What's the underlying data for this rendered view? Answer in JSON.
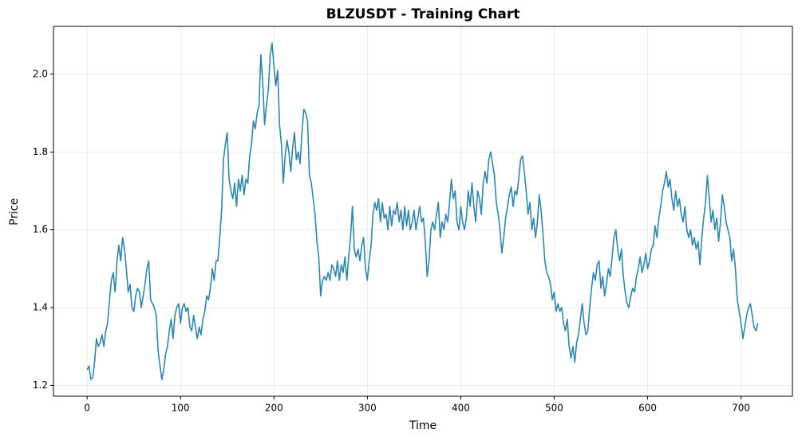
{
  "chart_data": {
    "type": "line",
    "title": "BLZUSDT - Training Chart",
    "x_label": "Time",
    "y_label": "Price",
    "xlim": [
      -36,
      755
    ],
    "ylim": [
      1.172,
      2.123
    ],
    "xticks": [
      0,
      100,
      200,
      300,
      400,
      500,
      600,
      700
    ],
    "yticks": [
      1.2,
      1.4,
      1.6,
      1.8,
      {
        "value": 2,
        "label": "2.0"
      }
    ],
    "grid": true,
    "series": [
      {
        "color": "#2e86ab",
        "x": [
          0,
          2,
          4,
          6,
          8,
          10,
          12,
          14,
          16,
          18,
          20,
          22,
          24,
          26,
          28,
          30,
          32,
          34,
          36,
          38,
          40,
          42,
          44,
          46,
          48,
          50,
          52,
          54,
          56,
          58,
          60,
          62,
          64,
          66,
          68,
          70,
          72,
          74,
          76,
          78,
          80,
          82,
          84,
          86,
          88,
          90,
          92,
          94,
          96,
          98,
          100,
          102,
          104,
          106,
          108,
          110,
          112,
          114,
          116,
          118,
          120,
          122,
          124,
          126,
          128,
          130,
          132,
          134,
          136,
          138,
          140,
          142,
          144,
          146,
          148,
          150,
          152,
          154,
          156,
          158,
          160,
          162,
          164,
          166,
          168,
          170,
          172,
          174,
          176,
          178,
          180,
          182,
          184,
          186,
          188,
          190,
          192,
          194,
          196,
          198,
          200,
          202,
          204,
          206,
          208,
          210,
          212,
          214,
          216,
          218,
          220,
          222,
          224,
          226,
          228,
          230,
          232,
          234,
          236,
          238,
          240,
          242,
          244,
          246,
          248,
          250,
          252,
          254,
          256,
          258,
          260,
          262,
          264,
          266,
          268,
          270,
          272,
          274,
          276,
          278,
          280,
          282,
          284,
          286,
          288,
          290,
          292,
          294,
          296,
          298,
          300,
          302,
          304,
          306,
          308,
          310,
          312,
          314,
          316,
          318,
          320,
          322,
          324,
          326,
          328,
          330,
          332,
          334,
          336,
          338,
          340,
          342,
          344,
          346,
          348,
          350,
          352,
          354,
          356,
          358,
          360,
          362,
          364,
          366,
          368,
          370,
          372,
          374,
          376,
          378,
          380,
          382,
          384,
          386,
          388,
          390,
          392,
          394,
          396,
          398,
          400,
          402,
          404,
          406,
          408,
          410,
          412,
          414,
          416,
          418,
          420,
          422,
          424,
          426,
          428,
          430,
          432,
          434,
          436,
          438,
          440,
          442,
          444,
          446,
          448,
          450,
          452,
          454,
          456,
          458,
          460,
          462,
          464,
          466,
          468,
          470,
          472,
          474,
          476,
          478,
          480,
          482,
          484,
          486,
          488,
          490,
          492,
          494,
          496,
          498,
          500,
          502,
          504,
          506,
          508,
          510,
          512,
          514,
          516,
          518,
          520,
          522,
          524,
          526,
          528,
          530,
          532,
          534,
          536,
          538,
          540,
          542,
          544,
          546,
          548,
          550,
          552,
          554,
          556,
          558,
          560,
          562,
          564,
          566,
          568,
          570,
          572,
          574,
          576,
          578,
          580,
          582,
          584,
          586,
          588,
          590,
          592,
          594,
          596,
          598,
          600,
          602,
          604,
          606,
          608,
          610,
          612,
          614,
          616,
          618,
          620,
          622,
          624,
          626,
          628,
          630,
          632,
          634,
          636,
          638,
          640,
          642,
          644,
          646,
          648,
          650,
          652,
          654,
          656,
          658,
          660,
          662,
          664,
          666,
          668,
          670,
          672,
          674,
          676,
          678,
          680,
          682,
          684,
          686,
          688,
          690,
          692,
          694,
          696,
          698,
          700,
          702,
          704,
          706,
          708,
          710,
          712,
          714,
          716,
          718
        ],
        "values": [
          1.24,
          1.25,
          1.215,
          1.22,
          1.26,
          1.32,
          1.3,
          1.31,
          1.33,
          1.3,
          1.34,
          1.36,
          1.42,
          1.47,
          1.49,
          1.44,
          1.52,
          1.56,
          1.52,
          1.58,
          1.55,
          1.5,
          1.44,
          1.46,
          1.4,
          1.39,
          1.43,
          1.45,
          1.44,
          1.4,
          1.43,
          1.46,
          1.5,
          1.52,
          1.42,
          1.41,
          1.4,
          1.38,
          1.29,
          1.25,
          1.215,
          1.24,
          1.28,
          1.3,
          1.34,
          1.37,
          1.32,
          1.38,
          1.4,
          1.41,
          1.36,
          1.4,
          1.41,
          1.39,
          1.4,
          1.35,
          1.34,
          1.38,
          1.35,
          1.32,
          1.35,
          1.33,
          1.37,
          1.39,
          1.43,
          1.42,
          1.45,
          1.5,
          1.47,
          1.52,
          1.52,
          1.58,
          1.65,
          1.78,
          1.82,
          1.85,
          1.73,
          1.7,
          1.68,
          1.72,
          1.66,
          1.73,
          1.7,
          1.74,
          1.69,
          1.73,
          1.72,
          1.79,
          1.82,
          1.88,
          1.86,
          1.9,
          1.92,
          2.05,
          1.98,
          1.87,
          1.92,
          1.96,
          2.05,
          2.08,
          2.02,
          1.97,
          2.01,
          1.87,
          1.82,
          1.72,
          1.79,
          1.83,
          1.8,
          1.75,
          1.81,
          1.85,
          1.78,
          1.8,
          1.77,
          1.85,
          1.91,
          1.9,
          1.88,
          1.74,
          1.72,
          1.68,
          1.64,
          1.57,
          1.53,
          1.43,
          1.47,
          1.48,
          1.47,
          1.49,
          1.47,
          1.51,
          1.5,
          1.48,
          1.52,
          1.47,
          1.51,
          1.49,
          1.53,
          1.47,
          1.53,
          1.58,
          1.66,
          1.55,
          1.53,
          1.55,
          1.52,
          1.56,
          1.58,
          1.5,
          1.47,
          1.52,
          1.56,
          1.64,
          1.67,
          1.65,
          1.68,
          1.62,
          1.67,
          1.63,
          1.64,
          1.6,
          1.66,
          1.61,
          1.65,
          1.64,
          1.67,
          1.62,
          1.65,
          1.6,
          1.66,
          1.61,
          1.65,
          1.6,
          1.62,
          1.65,
          1.6,
          1.63,
          1.66,
          1.62,
          1.63,
          1.57,
          1.48,
          1.52,
          1.6,
          1.62,
          1.6,
          1.64,
          1.67,
          1.58,
          1.62,
          1.6,
          1.64,
          1.62,
          1.67,
          1.73,
          1.68,
          1.7,
          1.62,
          1.6,
          1.66,
          1.62,
          1.6,
          1.63,
          1.7,
          1.66,
          1.72,
          1.66,
          1.62,
          1.7,
          1.68,
          1.64,
          1.72,
          1.75,
          1.72,
          1.78,
          1.8,
          1.77,
          1.74,
          1.67,
          1.64,
          1.6,
          1.54,
          1.58,
          1.63,
          1.66,
          1.69,
          1.71,
          1.66,
          1.7,
          1.69,
          1.73,
          1.78,
          1.79,
          1.75,
          1.7,
          1.64,
          1.67,
          1.6,
          1.63,
          1.58,
          1.62,
          1.69,
          1.65,
          1.59,
          1.52,
          1.49,
          1.48,
          1.46,
          1.42,
          1.44,
          1.39,
          1.41,
          1.39,
          1.4,
          1.36,
          1.34,
          1.37,
          1.3,
          1.27,
          1.3,
          1.26,
          1.31,
          1.33,
          1.37,
          1.41,
          1.36,
          1.33,
          1.34,
          1.4,
          1.45,
          1.49,
          1.47,
          1.51,
          1.52,
          1.45,
          1.48,
          1.43,
          1.46,
          1.5,
          1.48,
          1.53,
          1.58,
          1.6,
          1.55,
          1.52,
          1.55,
          1.48,
          1.44,
          1.41,
          1.4,
          1.43,
          1.45,
          1.44,
          1.48,
          1.5,
          1.53,
          1.49,
          1.51,
          1.54,
          1.5,
          1.52,
          1.55,
          1.56,
          1.61,
          1.58,
          1.63,
          1.66,
          1.7,
          1.72,
          1.75,
          1.71,
          1.73,
          1.68,
          1.65,
          1.7,
          1.66,
          1.68,
          1.64,
          1.62,
          1.66,
          1.6,
          1.58,
          1.6,
          1.56,
          1.58,
          1.55,
          1.57,
          1.51,
          1.58,
          1.63,
          1.67,
          1.74,
          1.68,
          1.62,
          1.65,
          1.6,
          1.63,
          1.57,
          1.62,
          1.69,
          1.66,
          1.62,
          1.6,
          1.58,
          1.52,
          1.55,
          1.5,
          1.42,
          1.39,
          1.36,
          1.32,
          1.35,
          1.38,
          1.4,
          1.41,
          1.38,
          1.35,
          1.34,
          1.36
        ]
      }
    ]
  }
}
